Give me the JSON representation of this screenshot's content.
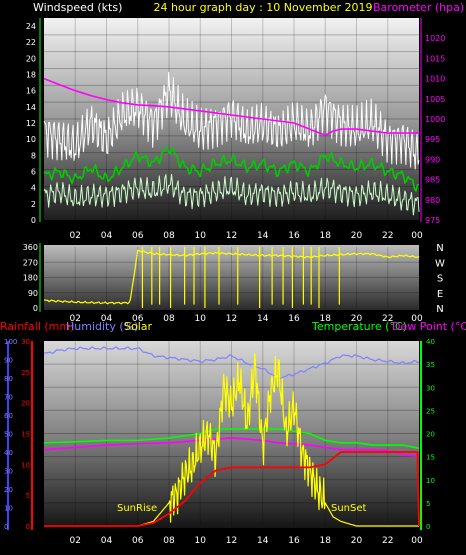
{
  "header": {
    "left_label": "Windspeed (kts)",
    "center_label": "24 hour graph day : 10 November 2019",
    "right_label": "Barometer (hpa)"
  },
  "colors": {
    "windspeed_label": "#ffffff",
    "center_label": "#ffff00",
    "barometer": "#ff00ff",
    "gust": "#ffffff",
    "average": "#00cc00",
    "low": "#ccffcc",
    "direction": "#ffff00",
    "rainfall": "#ff0000",
    "humidity": "#8080ff",
    "solar": "#ffff00",
    "temperature": "#00ff00",
    "dewpoint": "#ff00ff",
    "axis_green": "#00ff00",
    "axis_blue": "#4040ff",
    "axis_red": "#ff0000"
  },
  "bottom_labels": {
    "rainfall": "Rainfall (mm)",
    "humidity": "Humidity (%)",
    "solar": "Solar",
    "temperature": "Temperature (°C)",
    "dewpoint": "Dew Point (°C)",
    "sunrise": "SunRise",
    "sunset": "SunSet"
  },
  "chart_data": [
    {
      "type": "line",
      "name": "wind",
      "x_ticks": [
        "02",
        "04",
        "06",
        "08",
        "10",
        "12",
        "14",
        "16",
        "18",
        "20",
        "22",
        "00"
      ],
      "ylim_left": [
        0,
        25
      ],
      "yticks_left": [
        "0",
        "2",
        "4",
        "6",
        "8",
        "10",
        "12",
        "14",
        "16",
        "18",
        "20",
        "22",
        "24"
      ],
      "ylim_right": [
        975,
        1025
      ],
      "yticks_right": [
        "975",
        "980",
        "985",
        "990",
        "995",
        "1000",
        "1005",
        "1010",
        "1015",
        "1020"
      ],
      "series": [
        {
          "name": "Barometer",
          "x": [
            0,
            1,
            2,
            3,
            4,
            5,
            6,
            7,
            8,
            9,
            10,
            11,
            12,
            13,
            14,
            15,
            16,
            17,
            18,
            18.5,
            19,
            20,
            21,
            22,
            23,
            24
          ],
          "y": [
            1010,
            1008.5,
            1007,
            1005.8,
            1004.8,
            1004,
            1003.5,
            1003.3,
            1003,
            1002.5,
            1002,
            1001.5,
            1001,
            1000.5,
            1000,
            999.5,
            999,
            997.5,
            996,
            997,
            997.5,
            997.5,
            997,
            996.5,
            996.5,
            996.5
          ]
        },
        {
          "name": "Average",
          "x": [
            0,
            1,
            2,
            3,
            4,
            5,
            6,
            7,
            8,
            9,
            10,
            11,
            12,
            13,
            14,
            15,
            16,
            17,
            18,
            19,
            20,
            21,
            22,
            23,
            24
          ],
          "y": [
            5.5,
            6,
            5,
            6.5,
            5,
            6.5,
            8,
            7,
            9,
            6.5,
            6,
            7,
            7.5,
            6.5,
            7,
            6,
            7,
            6,
            8,
            7,
            6.5,
            7,
            6,
            5.5,
            4
          ]
        },
        {
          "name": "Gust",
          "x": [
            0,
            1,
            2,
            3,
            4,
            5,
            6,
            7,
            8,
            9,
            10,
            11,
            12,
            13,
            14,
            15,
            16,
            17,
            18,
            19,
            20,
            21,
            22,
            23,
            24
          ],
          "y": [
            11,
            10,
            9,
            12,
            10,
            13,
            14,
            12,
            16,
            12,
            11,
            12,
            13,
            11,
            12,
            11,
            12,
            11,
            14,
            12,
            11,
            12,
            10,
            10,
            8
          ]
        },
        {
          "name": "Low",
          "x": [
            0,
            1,
            2,
            3,
            4,
            5,
            6,
            7,
            8,
            9,
            10,
            11,
            12,
            13,
            14,
            15,
            16,
            17,
            18,
            19,
            20,
            21,
            22,
            23,
            24
          ],
          "y": [
            3,
            3.5,
            2.5,
            3,
            3,
            3.5,
            4,
            3.5,
            4.5,
            3,
            3,
            3.5,
            4,
            3,
            3.5,
            3,
            3.5,
            3,
            4,
            3.5,
            3,
            3.5,
            3,
            2.5,
            2
          ]
        }
      ]
    },
    {
      "type": "line",
      "name": "direction",
      "x_ticks": [
        "02",
        "04",
        "06",
        "08",
        "10",
        "12",
        "14",
        "16",
        "18",
        "20",
        "22",
        "00"
      ],
      "ylim": [
        0,
        360
      ],
      "yticks": [
        "0",
        "90",
        "180",
        "270",
        "360"
      ],
      "right_labels": [
        "N",
        "W",
        "S",
        "E",
        "N"
      ],
      "series": [
        {
          "name": "Direction",
          "x": [
            0,
            1,
            2,
            3,
            4,
            5,
            5.5,
            6,
            7,
            8,
            9,
            10,
            11,
            12,
            13,
            14,
            15,
            16,
            17,
            18,
            19,
            20,
            21,
            22,
            23,
            24
          ],
          "y": [
            45,
            40,
            35,
            32,
            30,
            30,
            32,
            340,
            320,
            315,
            310,
            320,
            325,
            320,
            315,
            310,
            310,
            305,
            300,
            310,
            315,
            320,
            320,
            300,
            310,
            300
          ]
        }
      ]
    },
    {
      "type": "line",
      "name": "climate",
      "x_ticks": [
        "02",
        "04",
        "06",
        "08",
        "10",
        "12",
        "14",
        "16",
        "18",
        "20",
        "22",
        "00"
      ],
      "ylim_humidity": [
        0,
        100
      ],
      "yticks_humidity": [
        "0",
        "10",
        "20",
        "30",
        "40",
        "50",
        "60",
        "70",
        "80",
        "90",
        "100"
      ],
      "ylim_rain": [
        0,
        30
      ],
      "yticks_rain": [
        "0",
        "5",
        "10",
        "15",
        "20",
        "25",
        "30"
      ],
      "ylim_temp": [
        0,
        40
      ],
      "yticks_temp": [
        "0",
        "5",
        "10",
        "15",
        "20",
        "25",
        "30",
        "35",
        "40"
      ],
      "series": [
        {
          "name": "Humidity",
          "x": [
            0,
            1,
            2,
            3,
            4,
            5,
            6,
            7,
            8,
            9,
            10,
            11,
            12,
            13,
            14,
            15,
            16,
            17,
            18,
            19,
            20,
            21,
            22,
            23,
            24
          ],
          "y": [
            93,
            95,
            96,
            96,
            96,
            96,
            96,
            92,
            91,
            90,
            89,
            90,
            92,
            88,
            85,
            80,
            82,
            85,
            88,
            92,
            92,
            90,
            89,
            88,
            89
          ]
        },
        {
          "name": "Temperature",
          "x": [
            0,
            2,
            4,
            6,
            8,
            10,
            11,
            12,
            13,
            14,
            15,
            16,
            17,
            18,
            19,
            20,
            21,
            22,
            23,
            24
          ],
          "y": [
            18,
            18.2,
            18.5,
            18.5,
            19,
            20,
            21,
            21,
            21,
            21,
            21,
            20.5,
            20,
            18.5,
            18,
            18,
            17.5,
            17.5,
            17.5,
            16.8
          ]
        },
        {
          "name": "Dew Point",
          "x": [
            0,
            2,
            4,
            6,
            8,
            10,
            11,
            12,
            13,
            14,
            15,
            16,
            17,
            18,
            19,
            20,
            21,
            22,
            23,
            24
          ],
          "y": [
            16.5,
            17,
            17.5,
            17.8,
            18,
            18.5,
            18.8,
            19,
            18.8,
            18.5,
            18,
            17.8,
            17.5,
            17,
            16.5,
            16.5,
            16.5,
            16.3,
            15.5,
            15
          ]
        },
        {
          "name": "Rainfall",
          "x": [
            0,
            6,
            7,
            8,
            9,
            10,
            11,
            12,
            13,
            14,
            15,
            16,
            17,
            18,
            18.5,
            19,
            20,
            21,
            22,
            23,
            23.9,
            24
          ],
          "y": [
            0,
            0,
            0.5,
            2,
            4,
            7,
            9,
            9.5,
            9.5,
            9.5,
            9.5,
            9.5,
            9.5,
            10,
            11,
            12,
            12,
            12,
            12,
            12,
            12,
            0
          ]
        },
        {
          "name": "Solar",
          "x": [
            6,
            6.5,
            7,
            7.5,
            8,
            8.5,
            9,
            9.5,
            10,
            10.5,
            11,
            11.5,
            12,
            12.5,
            13,
            13.5,
            14,
            14.5,
            15,
            15.5,
            16,
            16.5,
            17,
            17.5,
            18,
            18.5,
            19,
            20,
            24
          ],
          "y": [
            0,
            0.5,
            1,
            3,
            5,
            7,
            11,
            13,
            17,
            20,
            15,
            30,
            26,
            32,
            22,
            35,
            17,
            29,
            34,
            20,
            26,
            16,
            12,
            8,
            5,
            2,
            1,
            0,
            0
          ]
        }
      ]
    }
  ]
}
